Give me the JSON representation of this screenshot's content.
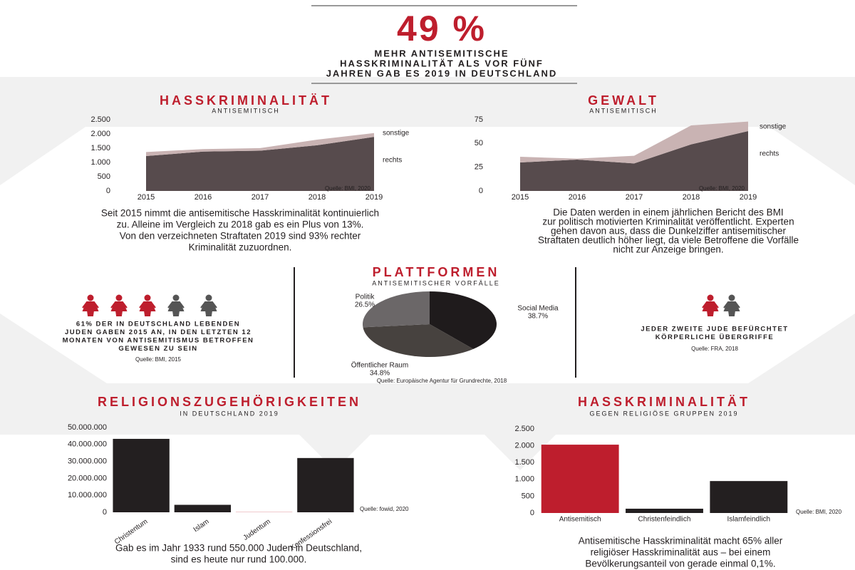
{
  "header": {
    "headline": "49 %",
    "subtitle_lines": [
      "MEHR ANTISEMITISCHE",
      "HASSKRIMINALITÄT ALS VOR FÜNF",
      "JAHREN GAB ES 2019 IN DEUTSCHLAND"
    ]
  },
  "chart_data": [
    {
      "type": "area",
      "stacked": true,
      "title": "HASSKRIMINALITÄT",
      "subtitle": "ANTISEMITISCH",
      "x": [
        2015,
        2016,
        2017,
        2018,
        2019
      ],
      "xlim": [
        2015,
        2019
      ],
      "xticks": [
        2015,
        2016,
        2017,
        2018,
        2019
      ],
      "ylim": [
        0,
        2500
      ],
      "yticks": [
        0,
        500,
        {
          "value": 1000,
          "label": "1.000"
        },
        {
          "value": 1500,
          "label": "1.500"
        },
        {
          "value": 2000,
          "label": "2.000"
        },
        {
          "value": 2500,
          "label": "2.500"
        }
      ],
      "series": [
        {
          "name": "rechts",
          "color": "#574b4d",
          "values": [
            1226,
            1381,
            1412,
            1603,
            1898
          ]
        },
        {
          "name": "sonstige",
          "color": "#c9b3b3",
          "values": [
            140,
            87,
            92,
            196,
            134
          ]
        }
      ],
      "source": "Quelle: BMI, 2020",
      "caption_lines": [
        "Seit 2015 nimmt die antisemitische Hasskriminalität kontinuierlich",
        "zu. Alleine im Vergleich zu 2018 gab es ein Plus von 13%.",
        "Von den verzeichneten Straftaten 2019 sind 93% rechter",
        "Kriminalität zuzuordnen."
      ]
    },
    {
      "type": "area",
      "stacked": true,
      "title": "GEWALT",
      "subtitle": "ANTISEMITISCH",
      "x": [
        2015,
        2016,
        2017,
        2018,
        2019
      ],
      "xlim": [
        2015,
        2019
      ],
      "xticks": [
        2015,
        2016,
        2017,
        2018,
        2019
      ],
      "ylim": [
        0,
        75
      ],
      "yticks": [
        0,
        25,
        50,
        75
      ],
      "series": [
        {
          "name": "rechts",
          "color": "#574b4d",
          "values": [
            30,
            33,
            29,
            49,
            63
          ]
        },
        {
          "name": "sonstige",
          "color": "#c9b3b3",
          "values": [
            6,
            1,
            8,
            20,
            10
          ]
        }
      ],
      "source": "Quelle: BMI, 2020",
      "caption_lines": [
        "Die Daten werden in einem jährlichen Bericht des BMI",
        "zur politisch motivierten Kriminalität veröffentlicht. Experten",
        "gehen davon aus, dass die Dunkelziffer antisemitischer",
        "Straftaten deutlich höher liegt, da viele Betroffene die Vorfälle",
        "nicht zur Anzeige bringen."
      ]
    },
    {
      "type": "pie",
      "title": "PLATTFORMEN",
      "subtitle": "ANTISEMITISCHER VORFÄLLE",
      "categories": [
        "Social Media",
        "Öffentlicher Raum",
        "Politik"
      ],
      "values": [
        38.7,
        34.8,
        26.5
      ],
      "value_labels": [
        "38.7%",
        "34.8%",
        "26.5%"
      ],
      "colors": [
        "#1f1b1c",
        "#47423f",
        "#6b6768"
      ],
      "source": "Quelle:  Europäische Agentur für Grundrechte, 2018"
    },
    {
      "type": "bar",
      "title": "RELIGIONSZUGEHÖRIGKEITEN",
      "subtitle": "IN DEUTSCHLAND 2019",
      "categories": [
        "Christentum",
        "Islam",
        "Judentum",
        "Konfessionsfrei"
      ],
      "values": [
        43300000,
        4400000,
        100000,
        32000000
      ],
      "colors": [
        "#231f20",
        "#231f20",
        "#be1e2d",
        "#231f20"
      ],
      "ylim": [
        0,
        50000000
      ],
      "yticks": [
        0,
        {
          "value": 10000000,
          "label": "10.000.000"
        },
        {
          "value": 20000000,
          "label": "20.000.000"
        },
        {
          "value": 30000000,
          "label": "30.000.000"
        },
        {
          "value": 40000000,
          "label": "40.000.000"
        },
        {
          "value": 50000000,
          "label": "50.000.000"
        }
      ],
      "source": "Quelle: fowid, 2020",
      "caption_lines": [
        "Gab es im Jahr 1933 rund 550.000 Juden in Deutschland,",
        "sind es heute nur rund 100.000."
      ]
    },
    {
      "type": "bar",
      "title": "HASSKRIMINALITÄT",
      "subtitle": "GEGEN RELIGIÖSE GRUPPEN 2019",
      "categories": [
        "Antisemitisch",
        "Christenfeindlich",
        "Islamfeindlich"
      ],
      "values": [
        2032,
        128,
        950
      ],
      "colors": [
        "#be1e2d",
        "#231f20",
        "#231f20"
      ],
      "ylim": [
        0,
        2500
      ],
      "yticks": [
        0,
        500,
        {
          "value": 1000,
          "label": "1.000"
        },
        {
          "value": 1500,
          "label": "1.500"
        },
        {
          "value": 2000,
          "label": "2.000"
        },
        {
          "value": 2500,
          "label": "2.500"
        }
      ],
      "source": "Quelle: BMI, 2020",
      "caption_lines": [
        "Antisemitische Hasskriminalität macht 65% aller",
        "religiöser Hasskriminalität aus – bei einem",
        "Bevölkerungsanteil von gerade einmal 0,1%."
      ]
    }
  ],
  "panels": [
    {
      "text_lines": [
        "61% DER IN DEUTSCHLAND LEBENDEN",
        "JUDEN GABEN 2015 AN, IN DEN LETZTEN 12",
        "MONATEN VON ANTISEMITISMUS BETROFFEN",
        "GEWESEN ZU SEIN"
      ],
      "source": "Quelle: BMI, 2015"
    },
    {
      "text_lines": [
        "JEDER ZWEITE JUDE BEFÜRCHTET",
        "KÖRPERLICHE ÜBERGRIFFE"
      ],
      "source": "Quelle: FRA, 2018"
    }
  ]
}
